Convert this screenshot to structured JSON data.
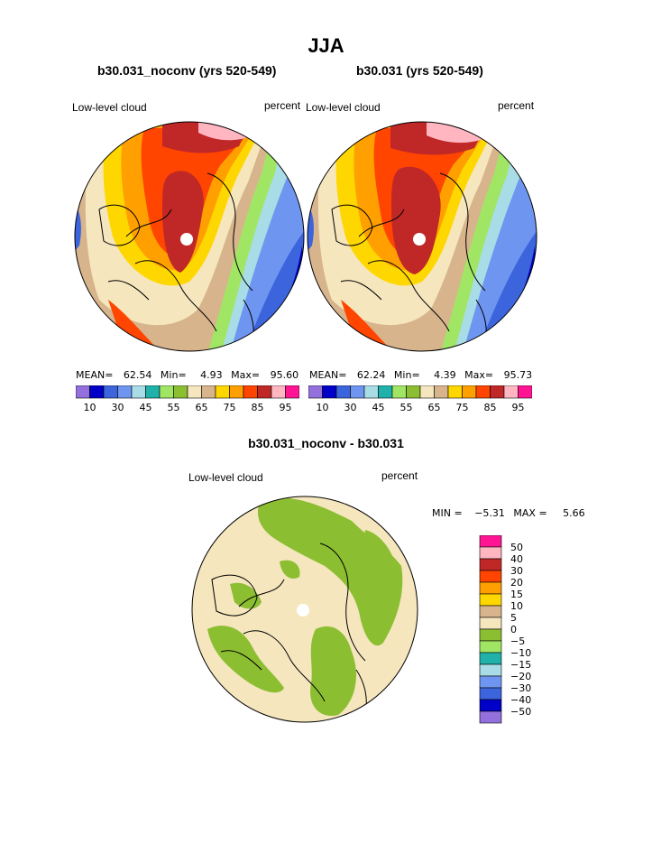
{
  "page": {
    "season": "JJA",
    "diff_title": "b30.031_noconv - b30.031"
  },
  "panels": [
    {
      "title": "b30.031_noconv (yrs 520-549)",
      "variable": "Low-level cloud",
      "units": "percent",
      "mean_label": "MEAN=",
      "mean": "62.54",
      "min_label": "Min=",
      "min": "4.93",
      "max_label": "Max=",
      "max": "95.60"
    },
    {
      "title": "b30.031 (yrs 520-549)",
      "variable": "Low-level cloud",
      "units": "percent",
      "mean_label": "MEAN=",
      "mean": "62.24",
      "min_label": "Min=",
      "min": "4.39",
      "max_label": "Max=",
      "max": "95.73"
    }
  ],
  "diff_panel": {
    "variable": "Low-level cloud",
    "units": "percent",
    "min_label": "MIN =",
    "min": "−5.31",
    "max_label": "MAX =",
    "max": "5.66"
  },
  "chart_data": [
    {
      "type": "heatmap",
      "projection": "north-polar-stereographic",
      "title": "b30.031_noconv (yrs 520-549)",
      "variable": "Low-level cloud",
      "units": "percent",
      "levels": [
        10,
        20,
        30,
        40,
        45,
        50,
        55,
        60,
        65,
        70,
        75,
        80,
        85,
        90,
        95
      ],
      "tick_labels": [
        "10",
        "30",
        "45",
        "55",
        "65",
        "75",
        "85",
        "95"
      ],
      "colors": [
        "#9370db",
        "#0000c8",
        "#3c64dc",
        "#6e96f0",
        "#a8dce6",
        "#20b2aa",
        "#a0e664",
        "#8cbe32",
        "#f5e6be",
        "#d7b48c",
        "#ffd700",
        "#ffa000",
        "#ff4500",
        "#c02828",
        "#ffb6c1",
        "#ff1493"
      ],
      "stats": {
        "mean": 62.54,
        "min": 4.93,
        "max": 95.6
      }
    },
    {
      "type": "heatmap",
      "projection": "north-polar-stereographic",
      "title": "b30.031 (yrs 520-549)",
      "variable": "Low-level cloud",
      "units": "percent",
      "levels": [
        10,
        20,
        30,
        40,
        45,
        50,
        55,
        60,
        65,
        70,
        75,
        80,
        85,
        90,
        95
      ],
      "tick_labels": [
        "10",
        "30",
        "45",
        "55",
        "65",
        "75",
        "85",
        "95"
      ],
      "colors": [
        "#9370db",
        "#0000c8",
        "#3c64dc",
        "#6e96f0",
        "#a8dce6",
        "#20b2aa",
        "#a0e664",
        "#8cbe32",
        "#f5e6be",
        "#d7b48c",
        "#ffd700",
        "#ffa000",
        "#ff4500",
        "#c02828",
        "#ffb6c1",
        "#ff1493"
      ],
      "stats": {
        "mean": 62.24,
        "min": 4.39,
        "max": 95.73
      }
    },
    {
      "type": "heatmap",
      "projection": "north-polar-stereographic",
      "title": "b30.031_noconv - b30.031",
      "variable": "Low-level cloud",
      "units": "percent",
      "levels": [
        50,
        40,
        30,
        20,
        15,
        10,
        5,
        0,
        -5,
        -10,
        -15,
        -20,
        -30,
        -40,
        -50
      ],
      "tick_labels": [
        "50",
        "40",
        "30",
        "20",
        "15",
        "10",
        "5",
        "0",
        "−5",
        "−10",
        "−15",
        "−20",
        "−30",
        "−40",
        "−50"
      ],
      "colors": [
        "#ff1493",
        "#ffb6c1",
        "#c02828",
        "#ff4500",
        "#ffa000",
        "#ffd700",
        "#d7b48c",
        "#f5e6be",
        "#8cbe32",
        "#a0e664",
        "#20b2aa",
        "#a8dce6",
        "#6e96f0",
        "#3c64dc",
        "#0000c8",
        "#9370db"
      ],
      "stats": {
        "min": -5.31,
        "max": 5.66
      }
    }
  ]
}
